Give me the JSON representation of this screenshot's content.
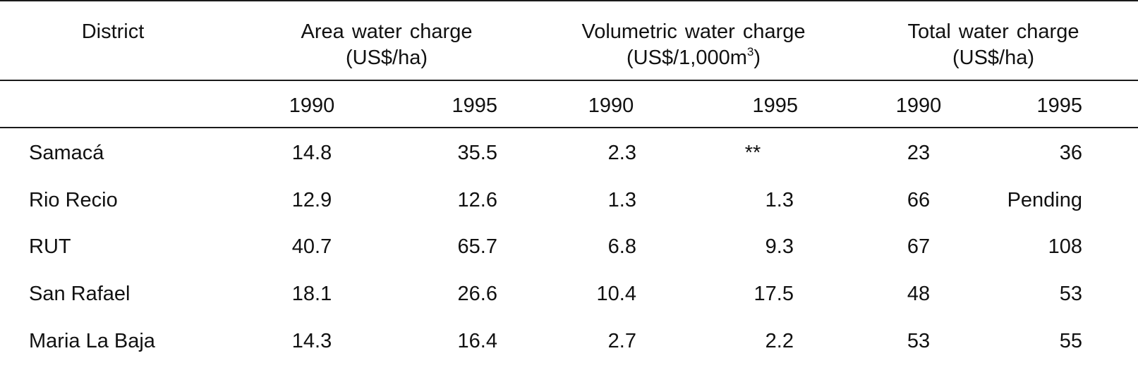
{
  "table": {
    "headers": {
      "district": "District",
      "area_line1": "Area water charge",
      "area_line2": "(US$/ha)",
      "volumetric_line1": "Volumetric water charge",
      "volumetric_line2_prefix": "(US$/1,000m",
      "volumetric_line2_sup": "3",
      "volumetric_line2_suffix": ")",
      "total_line1": "Total water charge",
      "total_line2": "(US$/ha)"
    },
    "years": [
      "1990",
      "1995",
      "1990",
      "1995",
      "1990",
      "1995"
    ],
    "rows": [
      {
        "district": "Samacá",
        "area_1990": "14.8",
        "area_1995": "35.5",
        "vol_1990": "2.3",
        "vol_1995": "**",
        "total_1990": "23",
        "total_1995": "36"
      },
      {
        "district": "Rio Recio",
        "area_1990": "12.9",
        "area_1995": "12.6",
        "vol_1990": "1.3",
        "vol_1995": "1.3",
        "total_1990": "66",
        "total_1995": "Pending"
      },
      {
        "district": "RUT",
        "area_1990": "40.7",
        "area_1995": "65.7",
        "vol_1990": "6.8",
        "vol_1995": "9.3",
        "total_1990": "67",
        "total_1995": "108"
      },
      {
        "district": "San Rafael",
        "area_1990": "18.1",
        "area_1995": "26.6",
        "vol_1990": "10.4",
        "vol_1995": "17.5",
        "total_1990": "48",
        "total_1995": "53"
      },
      {
        "district": "Maria La Baja",
        "area_1990": "14.3",
        "area_1995": "16.4",
        "vol_1990": "2.7",
        "vol_1995": "2.2",
        "total_1990": "53",
        "total_1995": "55"
      }
    ]
  }
}
